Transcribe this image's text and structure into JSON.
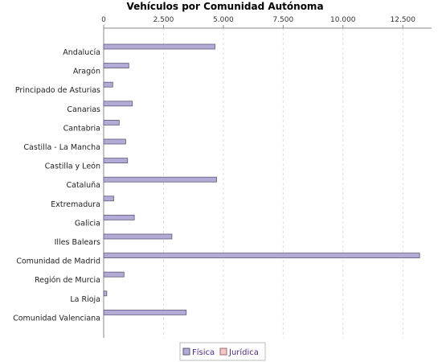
{
  "chart_data": {
    "type": "bar",
    "orientation": "horizontal",
    "title": "Vehículos por Comunidad Autónoma",
    "x_ticks": [
      "0",
      "2.500",
      "5.000",
      "7.500",
      "10.000",
      "12.500"
    ],
    "x_tick_values": [
      0,
      2500,
      5000,
      7500,
      10000,
      12500
    ],
    "xlim": [
      0,
      13700
    ],
    "grid": true,
    "legend_position": "bottom",
    "categories": [
      "Andalucía",
      "Aragón",
      "Principado de Asturias",
      "Canarias",
      "Cantabria",
      "Castilla - La Mancha",
      "Castilla y León",
      "Cataluña",
      "Extremadura",
      "Galicia",
      "Illes Balears",
      "Comunidad de Madrid",
      "Región de Murcia",
      "La Rioja",
      "Comunidad Valenciana"
    ],
    "series": [
      {
        "name": "Física",
        "color": "#b3abd6",
        "values": [
          4650,
          1050,
          380,
          1200,
          650,
          920,
          1000,
          4720,
          420,
          1280,
          2850,
          13200,
          850,
          130,
          3450
        ]
      },
      {
        "name": "Jurídica",
        "color": "#f6c6c6",
        "values": [
          0,
          0,
          0,
          0,
          0,
          0,
          0,
          0,
          0,
          0,
          0,
          0,
          0,
          0,
          0
        ]
      }
    ],
    "colors": {
      "bar_stroke": "#5f5a7a",
      "grid": "#dddddd",
      "axis": "#888888",
      "legend_text": "#4a2a8a"
    }
  }
}
